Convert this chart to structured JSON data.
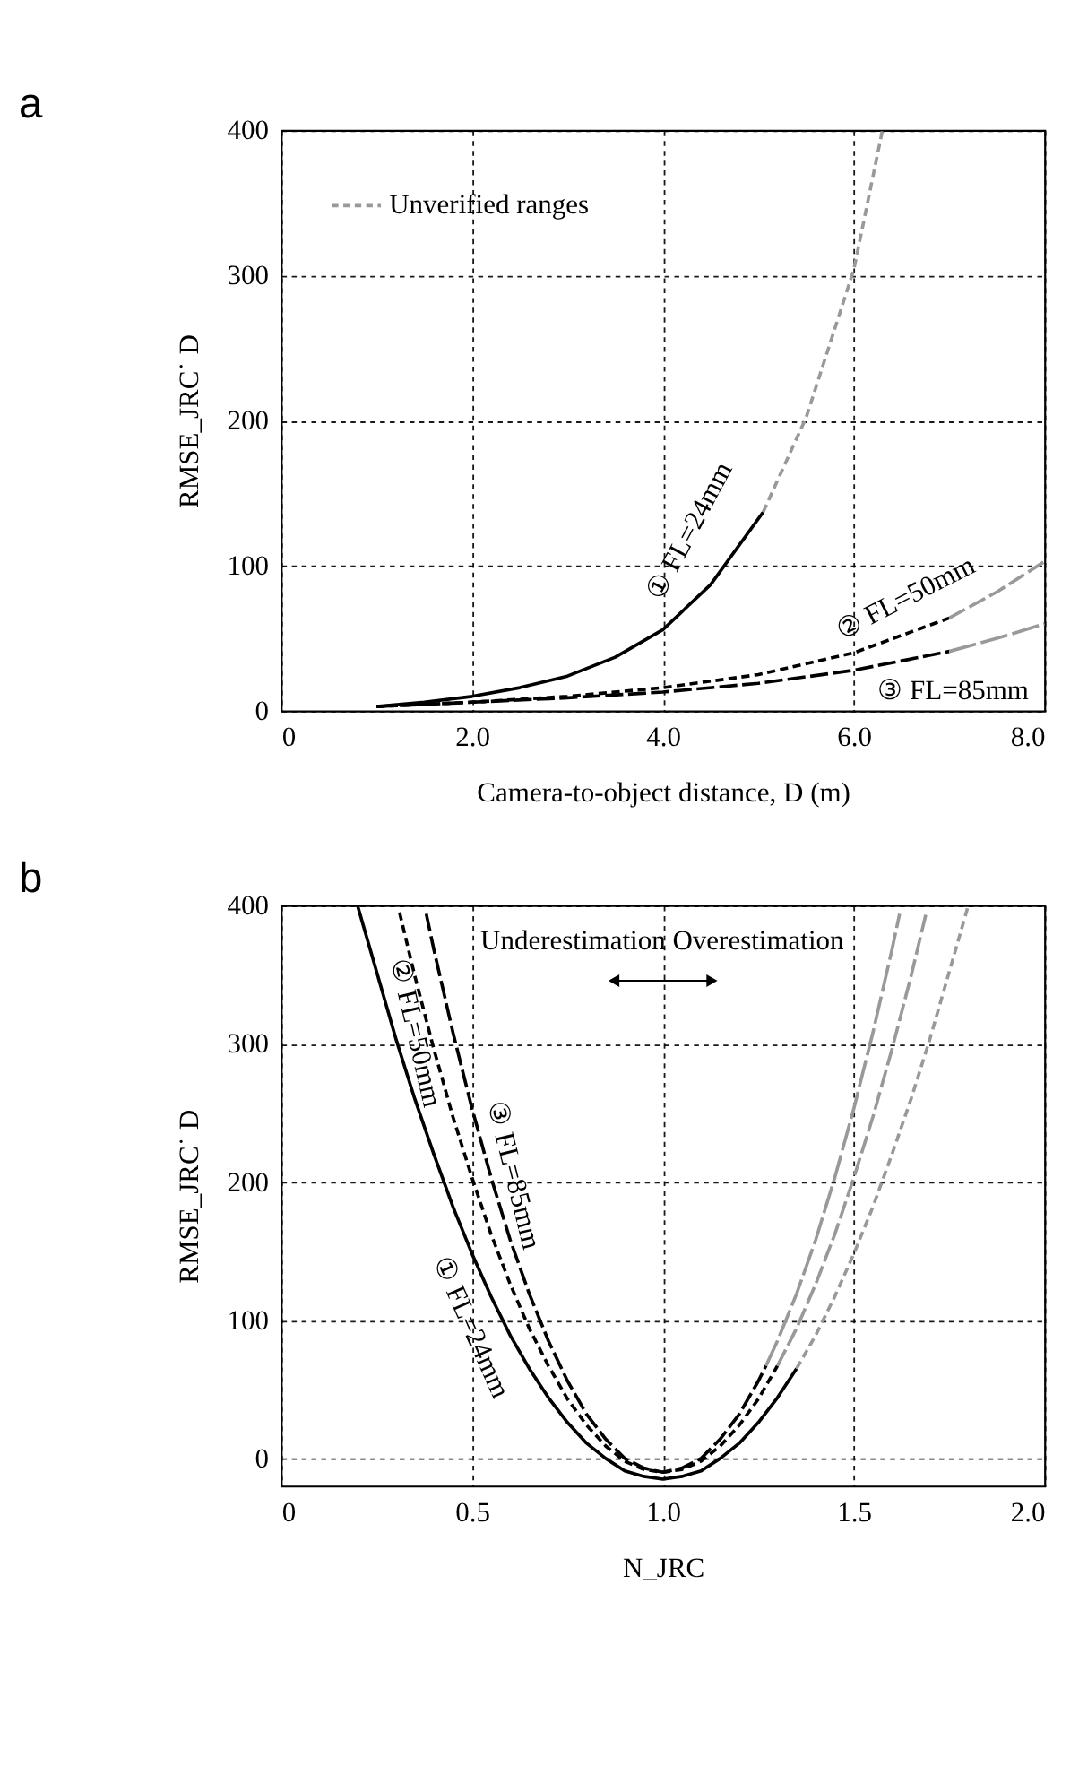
{
  "chart_data": [
    {
      "type": "line",
      "title": "a",
      "xlabel": "Camera-to-object distance, D (m)",
      "ylabel": "RMSE_JRC˙ D",
      "xlim": [
        0,
        8
      ],
      "ylim": [
        0,
        400
      ],
      "xticks": [
        0,
        {
          "value": 2,
          "label": "2.0"
        },
        {
          "value": 4,
          "label": "4.0"
        },
        {
          "value": 6,
          "label": "6.0"
        },
        {
          "value": 8,
          "label": "8.0"
        }
      ],
      "yticks": [
        0,
        100,
        200,
        300,
        400
      ],
      "grid": true,
      "legend": "top left",
      "series": [
        {
          "color": "#000000",
          "line_style": "solid",
          "x": [
            1,
            1.5,
            2,
            2.5,
            3,
            3.5,
            4,
            4.5,
            5.05
          ],
          "values": [
            3,
            6,
            10,
            16,
            24,
            37,
            56,
            87,
            137
          ]
        },
        {
          "color": "#000000",
          "line_style": "dashed",
          "x": [
            1,
            2,
            3,
            4,
            5,
            6,
            7
          ],
          "values": [
            3,
            6,
            10,
            16,
            25,
            40,
            64
          ]
        },
        {
          "color": "#000000",
          "line_style": "dashed",
          "x": [
            1,
            2,
            3,
            4,
            5,
            6,
            7
          ],
          "values": [
            3,
            6,
            9,
            13,
            19,
            28,
            41
          ]
        },
        {
          "name": "Unverified ranges",
          "color": "#999999",
          "line_style": "dashed",
          "x": [
            5.05,
            5.5,
            6,
            6.3
          ],
          "values": [
            137,
            202,
            304,
            400
          ]
        },
        {
          "color": "#999999",
          "line_style": "dashed",
          "x": [
            7,
            7.5,
            8
          ],
          "values": [
            64,
            82,
            103
          ]
        },
        {
          "color": "#999999",
          "line_style": "dashed",
          "x": [
            7,
            7.5,
            8
          ],
          "values": [
            41,
            50,
            60
          ]
        }
      ],
      "annotations": [
        "① FL=24mm",
        "② FL=50mm",
        "③ FL=85mm"
      ]
    },
    {
      "type": "line",
      "title": "b",
      "xlabel": "N_JRC",
      "ylabel": "RMSE_JRC˙ D",
      "xlim": [
        0,
        2
      ],
      "ylim": [
        -20,
        400
      ],
      "xticks": [
        0,
        0.5,
        {
          "value": 1,
          "label": "1.0"
        },
        1.5,
        {
          "value": 2,
          "label": "2.0"
        }
      ],
      "yticks": [
        0,
        100,
        200,
        300,
        400
      ],
      "grid": true,
      "series": [
        {
          "color": "#000000",
          "line_style": "solid",
          "x": [
            0.2,
            0.25,
            0.3,
            0.35,
            0.4,
            0.45,
            0.5,
            0.55,
            0.6,
            0.65,
            0.7,
            0.75,
            0.8,
            0.85,
            0.9,
            0.95,
            1.0,
            1.05,
            1.1,
            1.15,
            1.2,
            1.25,
            1.3,
            1.35
          ],
          "values": [
            400,
            352,
            304,
            260,
            220,
            182,
            148,
            117,
            89,
            65,
            44,
            26,
            11,
            0,
            -9,
            -13,
            -15,
            -13,
            -9,
            0,
            11,
            26,
            44,
            65
          ]
        },
        {
          "color": "#000000",
          "line_style": "dashed",
          "x": [
            0.31,
            0.35,
            0.4,
            0.45,
            0.5,
            0.55,
            0.6,
            0.65,
            0.7,
            0.75,
            0.8,
            0.85,
            0.9,
            0.95,
            1.0,
            1.05,
            1.1,
            1.15,
            1.2,
            1.25,
            1.3
          ],
          "values": [
            395,
            349,
            296,
            247,
            203,
            162,
            126,
            94,
            67,
            43,
            24,
            9,
            -2,
            -8,
            -10,
            -8,
            -2,
            9,
            24,
            43,
            67
          ]
        },
        {
          "color": "#000000",
          "line_style": "dashed",
          "x": [
            0.38,
            0.4,
            0.45,
            0.5,
            0.55,
            0.6,
            0.65,
            0.7,
            0.75,
            0.8,
            0.85,
            0.9,
            0.95,
            1.0,
            1.05,
            1.1,
            1.15,
            1.2,
            1.25,
            1.27
          ],
          "values": [
            394,
            368,
            308,
            253,
            203,
            158,
            119,
            85,
            56,
            32,
            14,
            0,
            -7,
            -10,
            -7,
            0,
            14,
            32,
            56,
            67
          ]
        },
        {
          "color": "#999999",
          "line_style": "dashed",
          "x": [
            1.35,
            1.4,
            1.45,
            1.5,
            1.55,
            1.6,
            1.65,
            1.7,
            1.75,
            1.8
          ],
          "values": [
            65,
            89,
            117,
            148,
            182,
            220,
            260,
            304,
            352,
            400
          ]
        },
        {
          "color": "#999999",
          "line_style": "dashed",
          "x": [
            1.3,
            1.35,
            1.4,
            1.45,
            1.5,
            1.55,
            1.6,
            1.65,
            1.69
          ],
          "values": [
            67,
            94,
            126,
            162,
            203,
            247,
            296,
            349,
            395
          ]
        },
        {
          "color": "#999999",
          "line_style": "dashed",
          "x": [
            1.27,
            1.3,
            1.35,
            1.4,
            1.45,
            1.5,
            1.55,
            1.6,
            1.62
          ],
          "values": [
            67,
            85,
            119,
            158,
            203,
            253,
            308,
            368,
            394
          ]
        }
      ],
      "annotations": [
        "Underestimation Overestimation",
        "② FL=50mm",
        "③ FL=85mm",
        "① FL=24mm"
      ]
    }
  ]
}
